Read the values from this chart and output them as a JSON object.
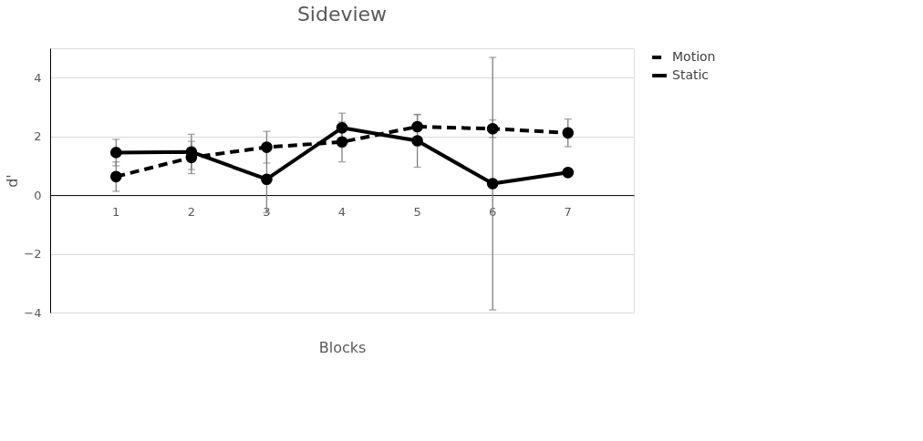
{
  "chart_data": {
    "type": "line",
    "title": "Sideview",
    "xlabel": "Blocks",
    "ylabel": "d'",
    "categories": [
      "1",
      "2",
      "3",
      "4",
      "5",
      "6",
      "7"
    ],
    "series": [
      {
        "name": "Motion",
        "color": "#000000",
        "line_style": "dashed",
        "values": [
          0.63,
          1.28,
          1.63,
          1.81,
          2.33,
          2.26,
          2.12
        ],
        "errors": [
          0.5,
          0.55,
          0.54,
          0.68,
          0.41,
          0.3,
          0.47
        ]
      },
      {
        "name": "Static",
        "color": "#000000",
        "line_style": "solid",
        "values": [
          1.45,
          1.47,
          0.54,
          2.29,
          1.85,
          0.39,
          0.77
        ],
        "errors": [
          0.45,
          0.6,
          1.14,
          0.5,
          0.9,
          4.3,
          null
        ]
      }
    ],
    "ylim": [
      -4,
      5
    ],
    "yticks": [
      -4,
      -2,
      0,
      2,
      4
    ],
    "grid": "y",
    "legend": "right",
    "marker": "circle"
  }
}
